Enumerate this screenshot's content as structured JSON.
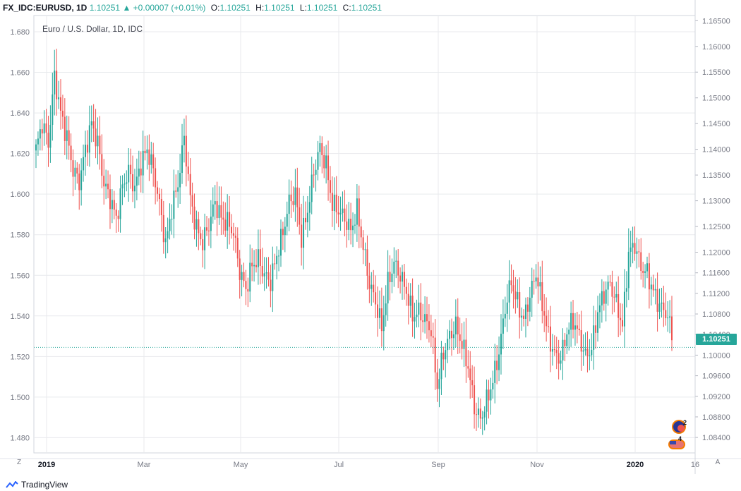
{
  "header": {
    "symbol": "FX_IDC:EURUSD, 1D",
    "last": "1.10251",
    "change_arrow": "▲",
    "change": "+0.00007 (+0.01%)",
    "o_label": "O:",
    "o_value": "1.10251",
    "h_label": "H:",
    "h_value": "1.10251",
    "l_label": "L:",
    "l_value": "1.10251",
    "c_label": "C:",
    "c_value": "1.10251"
  },
  "subtitle": "Euro / U.S. Dollar, 1D, IDC",
  "buttons": {
    "zoom": "Z",
    "auto": "A"
  },
  "brand": "TradingView",
  "events": [
    {
      "icon": "eu-flag-event-icon",
      "count": "2"
    },
    {
      "icon": "us-flag-event-icon",
      "count": "4"
    }
  ],
  "colors": {
    "up": "#26a69a",
    "down": "#ef5350",
    "grid": "#e8eaed",
    "axis_text": "#787b86"
  },
  "chart_data": {
    "type": "candlestick",
    "title": "Euro / U.S. Dollar, 1D, IDC",
    "left_axis": {
      "ticks": [
        "1.480",
        "1.500",
        "1.520",
        "1.540",
        "1.560",
        "1.580",
        "1.600",
        "1.620",
        "1.640",
        "1.660",
        "1.680"
      ],
      "range": [
        1.4725,
        1.688
      ]
    },
    "right_axis": {
      "ticks": [
        "1.08400",
        "1.08800",
        "1.09200",
        "1.09600",
        "1.10000",
        "1.10400",
        "1.10800",
        "1.11200",
        "1.11600",
        "1.12000",
        "1.12500",
        "1.13000",
        "1.13500",
        "1.14000",
        "1.14500",
        "1.15000",
        "1.15500",
        "1.16000",
        "1.16500"
      ],
      "range": [
        1.081,
        1.166
      ]
    },
    "x_ticks": [
      "2019",
      "Mar",
      "May",
      "Jul",
      "Sep",
      "Nov",
      "2020",
      "16"
    ],
    "last_price": "1.10251",
    "last_price_left": 1.5245,
    "grid": true,
    "anchors": [
      [
        0,
        1.622
      ],
      [
        3,
        1.635
      ],
      [
        6,
        1.625
      ],
      [
        9,
        1.658
      ],
      [
        12,
        1.64
      ],
      [
        15,
        1.628
      ],
      [
        18,
        1.612
      ],
      [
        21,
        1.606
      ],
      [
        24,
        1.622
      ],
      [
        27,
        1.635
      ],
      [
        30,
        1.625
      ],
      [
        33,
        1.605
      ],
      [
        36,
        1.598
      ],
      [
        39,
        1.588
      ],
      [
        42,
        1.604
      ],
      [
        45,
        1.611
      ],
      [
        48,
        1.603
      ],
      [
        51,
        1.615
      ],
      [
        54,
        1.622
      ],
      [
        57,
        1.612
      ],
      [
        60,
        1.595
      ],
      [
        63,
        1.575
      ],
      [
        66,
        1.593
      ],
      [
        69,
        1.605
      ],
      [
        72,
        1.628
      ],
      [
        75,
        1.598
      ],
      [
        78,
        1.583
      ],
      [
        81,
        1.576
      ],
      [
        84,
        1.585
      ],
      [
        87,
        1.596
      ],
      [
        90,
        1.588
      ],
      [
        93,
        1.586
      ],
      [
        96,
        1.581
      ],
      [
        99,
        1.562
      ],
      [
        102,
        1.553
      ],
      [
        105,
        1.565
      ],
      [
        108,
        1.568
      ],
      [
        111,
        1.56
      ],
      [
        114,
        1.557
      ],
      [
        117,
        1.57
      ],
      [
        120,
        1.581
      ],
      [
        123,
        1.596
      ],
      [
        126,
        1.6
      ],
      [
        129,
        1.578
      ],
      [
        132,
        1.592
      ],
      [
        135,
        1.611
      ],
      [
        138,
        1.623
      ],
      [
        141,
        1.614
      ],
      [
        144,
        1.595
      ],
      [
        147,
        1.592
      ],
      [
        150,
        1.588
      ],
      [
        153,
        1.582
      ],
      [
        156,
        1.592
      ],
      [
        159,
        1.574
      ],
      [
        162,
        1.556
      ],
      [
        165,
        1.547
      ],
      [
        168,
        1.534
      ],
      [
        171,
        1.556
      ],
      [
        174,
        1.566
      ],
      [
        177,
        1.56
      ],
      [
        180,
        1.552
      ],
      [
        183,
        1.54
      ],
      [
        186,
        1.542
      ],
      [
        189,
        1.538
      ],
      [
        192,
        1.533
      ],
      [
        195,
        1.505
      ],
      [
        198,
        1.522
      ],
      [
        201,
        1.53
      ],
      [
        204,
        1.535
      ],
      [
        207,
        1.526
      ],
      [
        210,
        1.515
      ],
      [
        213,
        1.495
      ],
      [
        216,
        1.489
      ],
      [
        219,
        1.498
      ],
      [
        222,
        1.508
      ],
      [
        225,
        1.522
      ],
      [
        228,
        1.544
      ],
      [
        231,
        1.557
      ],
      [
        234,
        1.546
      ],
      [
        237,
        1.538
      ],
      [
        240,
        1.55
      ],
      [
        243,
        1.561
      ],
      [
        246,
        1.546
      ],
      [
        249,
        1.53
      ],
      [
        252,
        1.521
      ],
      [
        255,
        1.519
      ],
      [
        258,
        1.532
      ],
      [
        261,
        1.538
      ],
      [
        264,
        1.53
      ],
      [
        267,
        1.52
      ],
      [
        270,
        1.524
      ],
      [
        273,
        1.542
      ],
      [
        276,
        1.551
      ],
      [
        279,
        1.556
      ],
      [
        282,
        1.546
      ],
      [
        285,
        1.535
      ],
      [
        288,
        1.571
      ],
      [
        291,
        1.575
      ],
      [
        294,
        1.564
      ],
      [
        297,
        1.561
      ],
      [
        300,
        1.552
      ],
      [
        303,
        1.545
      ],
      [
        306,
        1.542
      ],
      [
        309,
        1.532
      ]
    ]
  }
}
